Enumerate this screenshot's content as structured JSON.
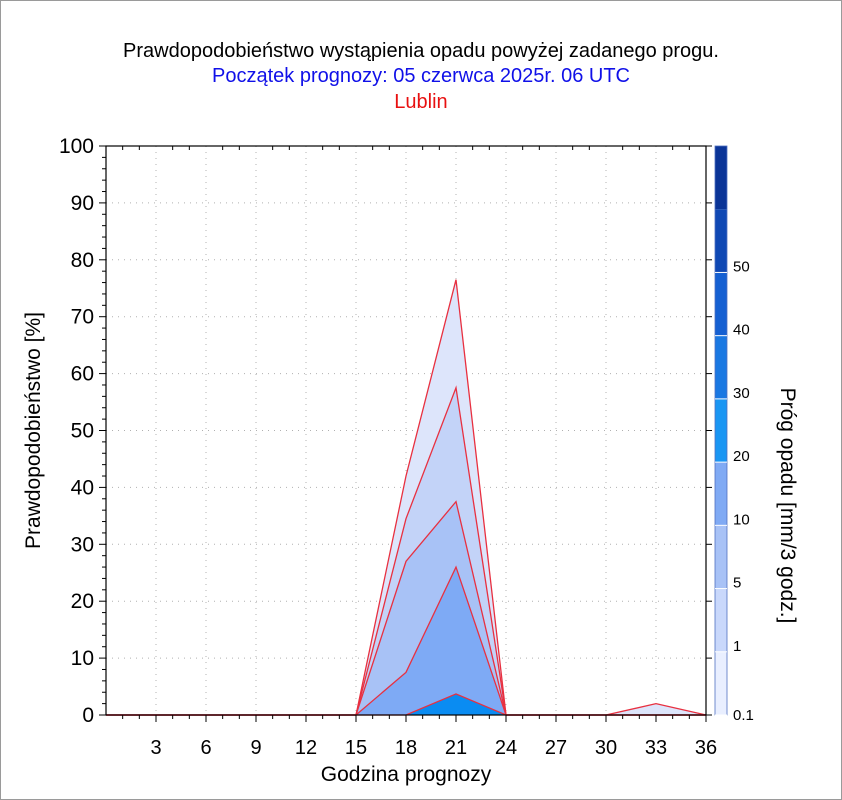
{
  "titles": {
    "line1": "Prawdopodobieństwo wystąpienia opadu powyżej zadanego progu.",
    "line2": "Początek prognozy: 05 czerwca 2025r. 06 UTC",
    "line3": "Lublin"
  },
  "colors": {
    "title_line1": "#000000",
    "title_line2": "#1010e8",
    "title_line3": "#e81010",
    "series_outline": "#e83040"
  },
  "chart_data": {
    "type": "area",
    "xlabel": "Godzina prognozy",
    "ylabel": "Prawdopodobieństwo [%]",
    "colorbar_label": "Próg opadu [mm/3 godz.]",
    "xlim": [
      0,
      36
    ],
    "ylim": [
      0,
      100
    ],
    "x_ticks": [
      3,
      6,
      9,
      12,
      15,
      18,
      21,
      24,
      27,
      30,
      33,
      36
    ],
    "y_ticks": [
      0,
      10,
      20,
      30,
      40,
      50,
      60,
      70,
      80,
      90,
      100
    ],
    "grid": true,
    "x": [
      0,
      3,
      6,
      9,
      12,
      15,
      18,
      21,
      24,
      27,
      30,
      33,
      36
    ],
    "series": [
      {
        "threshold": "0.1",
        "color": "#dde5fb",
        "values": [
          0,
          0,
          0,
          0,
          0,
          0,
          42,
          76.5,
          0,
          0,
          0,
          2,
          0
        ]
      },
      {
        "threshold": "1",
        "color": "#c3d3f8",
        "values": [
          0,
          0,
          0,
          0,
          0,
          0,
          34.5,
          57.5,
          0,
          0,
          0,
          0,
          0
        ]
      },
      {
        "threshold": "5",
        "color": "#a8c2f6",
        "values": [
          0,
          0,
          0,
          0,
          0,
          0,
          27,
          37.5,
          0,
          0,
          0,
          0,
          0
        ]
      },
      {
        "threshold": "10",
        "color": "#7eaaf5",
        "values": [
          0,
          0,
          0,
          0,
          0,
          0,
          7.5,
          26,
          0,
          0,
          0,
          0,
          0
        ]
      },
      {
        "threshold": "20",
        "color": "#0a8cf2",
        "values": [
          0,
          0,
          0,
          0,
          0,
          0,
          0,
          3.7,
          0,
          0,
          0,
          0,
          0
        ]
      }
    ],
    "colorbar": {
      "labels": [
        "0.1",
        "1",
        "5",
        "10",
        "20",
        "30",
        "40",
        "50"
      ],
      "bands": [
        {
          "color": "#e9efff"
        },
        {
          "color": "#c9d8fb"
        },
        {
          "color": "#a8c2f6"
        },
        {
          "color": "#80aaf4"
        },
        {
          "color": "#1a96f3"
        },
        {
          "color": "#1a78e2"
        },
        {
          "color": "#1560d2"
        },
        {
          "color": "#0f48b4"
        },
        {
          "color": "#0a3497"
        }
      ]
    }
  }
}
